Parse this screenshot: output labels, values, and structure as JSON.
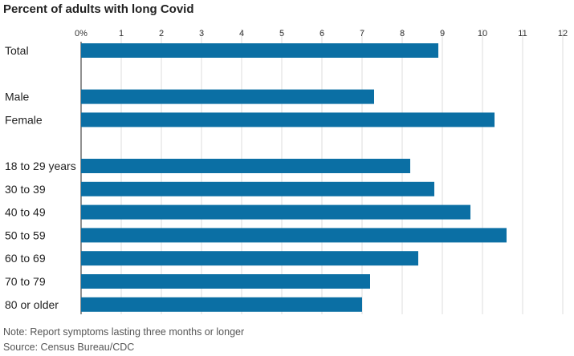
{
  "chart_data": {
    "type": "bar",
    "orientation": "horizontal",
    "title": "Percent of adults with long Covid",
    "xlabel": "",
    "ylabel": "",
    "xlim": [
      0,
      12
    ],
    "x_ticks": [
      "0%",
      "1",
      "2",
      "3",
      "4",
      "5",
      "6",
      "7",
      "8",
      "9",
      "10",
      "11",
      "12"
    ],
    "grid": true,
    "legend": "none",
    "bar_color": "#0b6fa4",
    "categories": [
      "Total",
      "Male",
      "Female",
      "18 to 29 years",
      "30 to 39",
      "40 to 49",
      "50 to 59",
      "60 to 69",
      "70 to 79",
      "80 or older"
    ],
    "groups": [
      [
        "Total"
      ],
      [
        "Male",
        "Female"
      ],
      [
        "18 to 29 years",
        "30 to 39",
        "40 to 49",
        "50 to 59",
        "60 to 69",
        "70 to 79",
        "80 or older"
      ]
    ],
    "values": [
      8.9,
      7.3,
      10.3,
      8.2,
      8.8,
      9.7,
      10.6,
      8.4,
      7.2,
      7.0
    ],
    "note": "Note: Report symptoms lasting three months or longer",
    "source": "Source: Census Bureau/CDC"
  }
}
